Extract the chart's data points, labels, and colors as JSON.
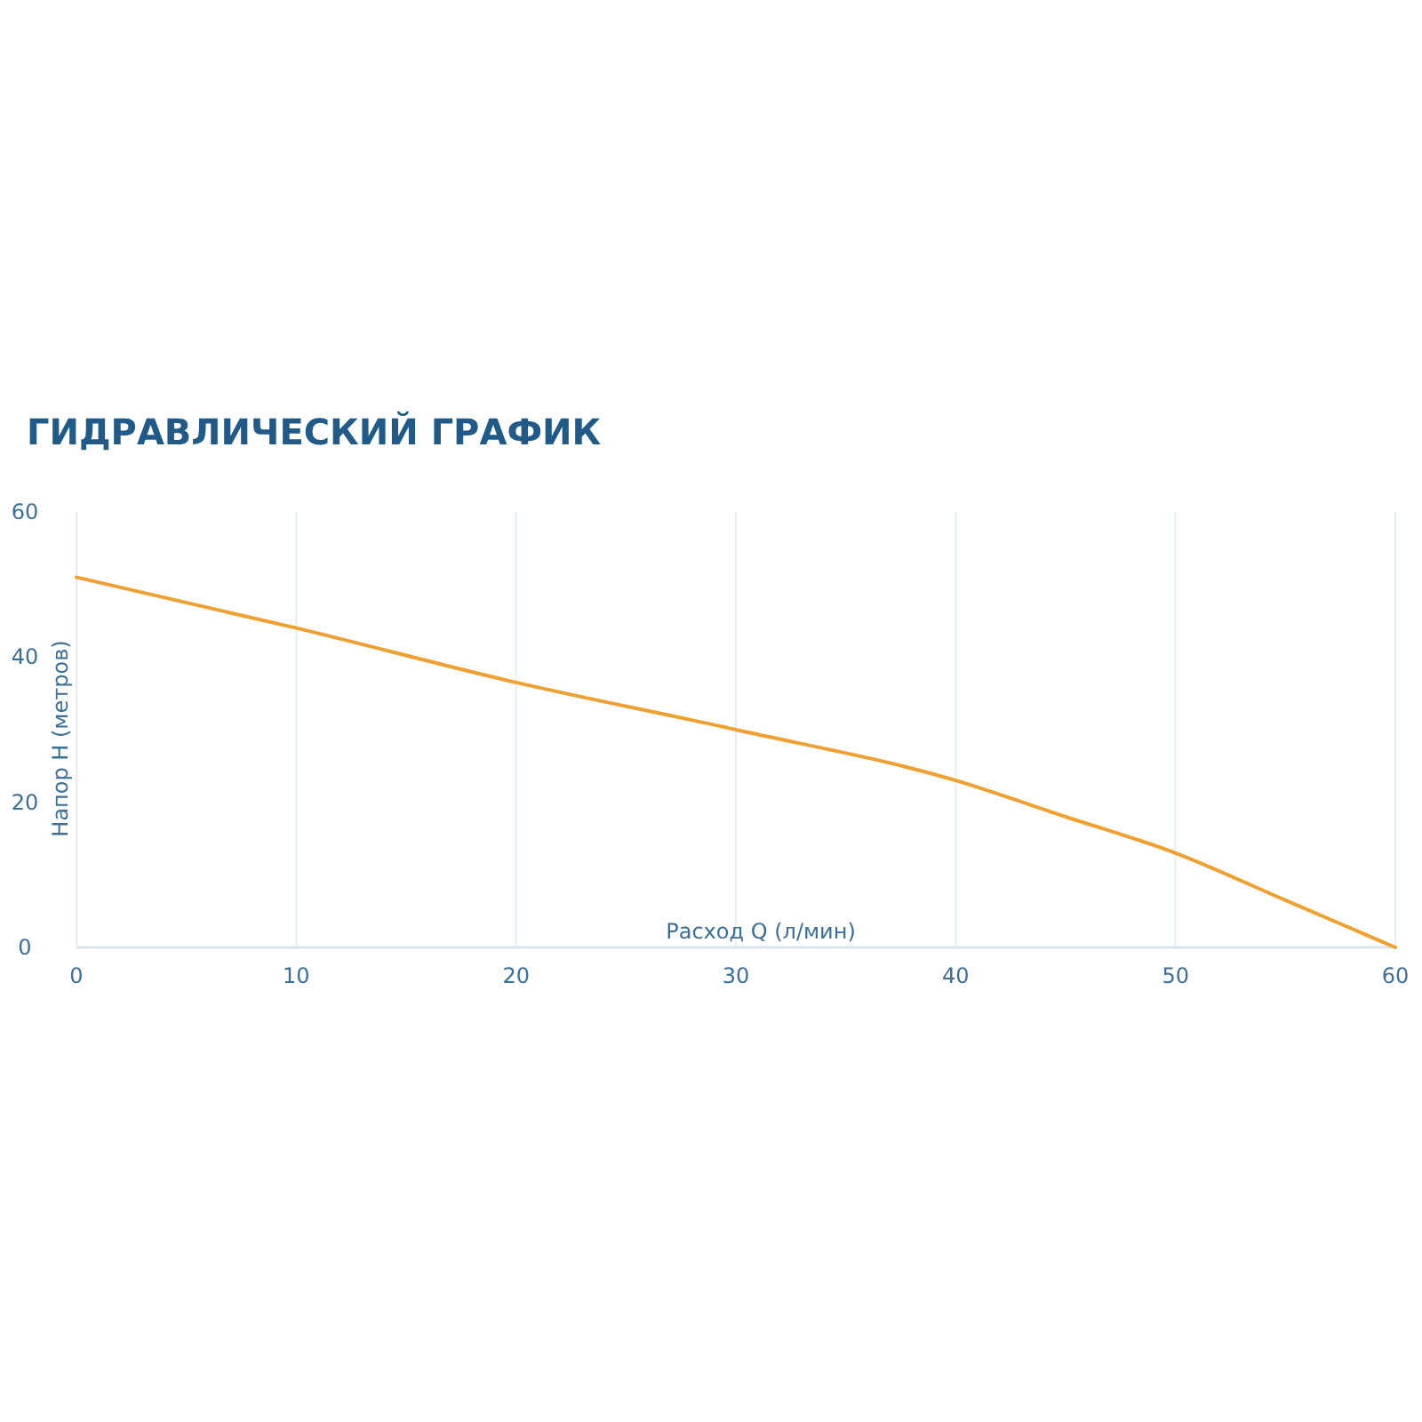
{
  "chart_data": {
    "type": "line",
    "title": "ГИДРАВЛИЧЕСКИЙ ГРАФИК",
    "xlabel": "Расход Q (л/мин)",
    "ylabel": "Напор H (метров)",
    "x": [
      0,
      10,
      20,
      30,
      40,
      45,
      50,
      55,
      60
    ],
    "series": [
      {
        "color": "#f0a030",
        "values": [
          51,
          44,
          36.5,
          30,
          23,
          18,
          13,
          6.5,
          0
        ]
      }
    ],
    "xlim": [
      0,
      60
    ],
    "ylim": [
      0,
      60
    ],
    "xticks": [
      0,
      10,
      20,
      30,
      40,
      50,
      60
    ],
    "yticks": [
      0,
      20,
      40,
      60
    ],
    "grid": "x"
  }
}
